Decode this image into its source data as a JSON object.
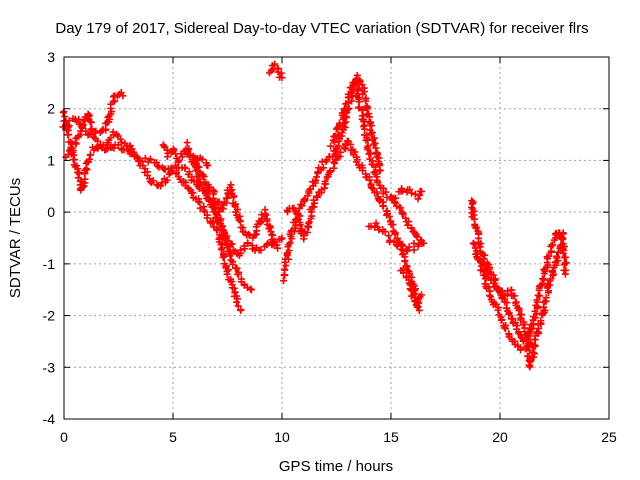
{
  "chart_data": {
    "type": "scatter",
    "title": "Day 179 of 2017, Sidereal Day-to-day VTEC variation (SDTVAR) for receiver flrs",
    "xlabel": "GPS time / hours",
    "ylabel": "SDTVAR / TECUs",
    "xlim": [
      0,
      25
    ],
    "ylim": [
      -4,
      3
    ],
    "xticks": [
      "0",
      "5",
      "10",
      "15",
      "20",
      "25"
    ],
    "yticks": [
      "3",
      "2",
      "1",
      "0",
      "-1",
      "-2",
      "-3",
      "-4"
    ],
    "grid": true,
    "marker": "plus",
    "series": [
      {
        "name": "SDTVAR",
        "color": "#ff0000",
        "segments": [
          [
            [
              0.0,
              1.95
            ],
            [
              0.1,
              1.7
            ],
            [
              0.2,
              1.5
            ],
            [
              0.3,
              1.3
            ],
            [
              0.5,
              1.0
            ],
            [
              0.7,
              0.7
            ],
            [
              0.8,
              0.4
            ],
            [
              0.9,
              0.6
            ],
            [
              1.0,
              0.8
            ],
            [
              1.2,
              1.1
            ],
            [
              1.5,
              1.3
            ],
            [
              1.8,
              1.2
            ],
            [
              2.0,
              1.3
            ],
            [
              2.3,
              1.5
            ],
            [
              2.6,
              1.4
            ],
            [
              3.0,
              1.3
            ],
            [
              3.3,
              1.1
            ],
            [
              3.6,
              0.9
            ],
            [
              4.0,
              0.6
            ],
            [
              4.3,
              0.5
            ],
            [
              4.6,
              0.6
            ],
            [
              5.0,
              0.8
            ],
            [
              5.3,
              0.7
            ],
            [
              5.6,
              0.5
            ],
            [
              6.0,
              0.3
            ],
            [
              6.3,
              0.1
            ],
            [
              6.6,
              -0.1
            ],
            [
              7.0,
              -0.3
            ],
            [
              7.2,
              -0.6
            ],
            [
              7.4,
              -1.0
            ],
            [
              7.6,
              -1.3
            ],
            [
              7.8,
              -1.5
            ],
            [
              8.0,
              -1.8
            ],
            [
              8.1,
              -1.9
            ]
          ],
          [
            [
              0.0,
              1.6
            ],
            [
              0.3,
              1.75
            ],
            [
              0.6,
              1.8
            ],
            [
              0.9,
              1.6
            ],
            [
              1.2,
              1.5
            ],
            [
              1.5,
              1.4
            ],
            [
              1.8,
              1.3
            ],
            [
              2.0,
              1.2
            ],
            [
              2.4,
              1.3
            ],
            [
              2.8,
              1.2
            ],
            [
              3.2,
              1.1
            ],
            [
              3.6,
              1.0
            ],
            [
              4.0,
              1.0
            ],
            [
              4.4,
              0.9
            ],
            [
              4.8,
              0.8
            ],
            [
              5.2,
              0.9
            ],
            [
              5.6,
              0.8
            ],
            [
              6.0,
              0.6
            ],
            [
              6.4,
              0.4
            ],
            [
              6.8,
              0.2
            ],
            [
              7.0,
              0.0
            ],
            [
              7.2,
              -0.2
            ],
            [
              7.4,
              -0.5
            ],
            [
              7.6,
              -0.8
            ],
            [
              7.8,
              -1.0
            ],
            [
              8.0,
              -1.2
            ],
            [
              8.3,
              -1.4
            ],
            [
              8.6,
              -1.5
            ]
          ],
          [
            [
              0.1,
              1.1
            ],
            [
              0.3,
              1.2
            ],
            [
              0.6,
              1.4
            ],
            [
              0.9,
              1.7
            ],
            [
              1.1,
              1.9
            ],
            [
              1.3,
              1.6
            ],
            [
              1.6,
              1.5
            ],
            [
              1.9,
              1.6
            ],
            [
              2.1,
              1.9
            ],
            [
              2.3,
              2.2
            ],
            [
              2.5,
              2.3
            ],
            [
              2.7,
              2.25
            ]
          ],
          [
            [
              4.5,
              1.3
            ],
            [
              4.8,
              1.1
            ],
            [
              5.0,
              1.2
            ],
            [
              5.3,
              1.0
            ],
            [
              5.6,
              1.2
            ],
            [
              5.8,
              1.05
            ],
            [
              6.0,
              0.9
            ],
            [
              6.2,
              0.7
            ],
            [
              6.4,
              0.5
            ],
            [
              6.6,
              0.3
            ],
            [
              6.8,
              0.1
            ],
            [
              7.0,
              -0.1
            ],
            [
              7.2,
              -0.3
            ],
            [
              7.4,
              -0.5
            ],
            [
              7.6,
              -0.6
            ],
            [
              7.8,
              -0.7
            ],
            [
              8.0,
              -0.8
            ],
            [
              8.2,
              -0.7
            ],
            [
              8.5,
              -0.6
            ],
            [
              8.8,
              -0.7
            ],
            [
              9.1,
              -0.75
            ],
            [
              9.4,
              -0.6
            ],
            [
              9.7,
              -0.55
            ],
            [
              10.0,
              -0.5
            ]
          ],
          [
            [
              5.6,
              1.3
            ],
            [
              5.9,
              1.1
            ],
            [
              6.2,
              0.8
            ],
            [
              6.5,
              0.6
            ],
            [
              6.8,
              0.4
            ],
            [
              7.0,
              0.2
            ],
            [
              7.2,
              0.05
            ],
            [
              7.4,
              0.2
            ],
            [
              7.6,
              0.5
            ],
            [
              7.8,
              0.2
            ],
            [
              8.0,
              -0.1
            ],
            [
              8.2,
              -0.3
            ],
            [
              8.4,
              -0.45
            ],
            [
              8.6,
              -0.5
            ],
            [
              8.8,
              -0.4
            ],
            [
              9.0,
              -0.2
            ],
            [
              9.2,
              0.0
            ],
            [
              9.4,
              -0.3
            ],
            [
              9.6,
              -0.6
            ],
            [
              9.8,
              -0.7
            ]
          ],
          [
            [
              6.0,
              1.0
            ],
            [
              6.2,
              1.05
            ],
            [
              6.4,
              1.0
            ],
            [
              6.6,
              0.9
            ]
          ],
          [
            [
              9.4,
              2.7
            ],
            [
              9.6,
              2.85
            ],
            [
              9.8,
              2.8
            ],
            [
              10.0,
              2.6
            ]
          ],
          [
            [
              10.1,
              -1.3
            ],
            [
              10.2,
              -1.0
            ],
            [
              10.4,
              -0.5
            ],
            [
              10.6,
              -0.2
            ],
            [
              10.8,
              0.0
            ],
            [
              11.0,
              0.2
            ],
            [
              11.2,
              0.35
            ],
            [
              11.4,
              0.5
            ],
            [
              11.6,
              0.7
            ],
            [
              11.8,
              0.85
            ],
            [
              12.0,
              1.0
            ],
            [
              12.2,
              1.05
            ],
            [
              12.4,
              1.1
            ],
            [
              12.6,
              1.3
            ],
            [
              12.8,
              1.6
            ],
            [
              13.0,
              1.9
            ],
            [
              13.2,
              2.3
            ],
            [
              13.4,
              2.5
            ],
            [
              13.5,
              2.2
            ],
            [
              13.7,
              1.8
            ],
            [
              13.9,
              1.4
            ],
            [
              14.1,
              1.0
            ],
            [
              14.3,
              0.7
            ],
            [
              14.5,
              0.45
            ],
            [
              14.8,
              0.35
            ],
            [
              15.1,
              0.2
            ],
            [
              15.4,
              0.05
            ],
            [
              15.7,
              -0.15
            ],
            [
              16.0,
              -0.35
            ],
            [
              16.3,
              -0.55
            ],
            [
              16.5,
              -0.6
            ]
          ],
          [
            [
              10.2,
              0.0
            ],
            [
              10.5,
              0.1
            ],
            [
              10.8,
              -0.2
            ],
            [
              11.0,
              -0.5
            ],
            [
              11.2,
              -0.3
            ],
            [
              11.4,
              0.1
            ],
            [
              11.6,
              0.3
            ],
            [
              11.9,
              0.5
            ],
            [
              12.2,
              0.8
            ],
            [
              12.5,
              1.0
            ],
            [
              12.8,
              1.2
            ],
            [
              13.0,
              1.4
            ],
            [
              13.2,
              1.2
            ],
            [
              13.4,
              1.05
            ],
            [
              13.6,
              0.9
            ],
            [
              13.8,
              0.75
            ],
            [
              14.0,
              0.6
            ],
            [
              14.2,
              0.45
            ],
            [
              14.4,
              0.3
            ],
            [
              14.6,
              0.15
            ],
            [
              14.8,
              0.0
            ],
            [
              15.0,
              -0.2
            ],
            [
              15.2,
              -0.45
            ],
            [
              15.4,
              -0.6
            ],
            [
              15.6,
              -0.85
            ],
            [
              15.8,
              -1.1
            ],
            [
              16.0,
              -1.4
            ],
            [
              16.2,
              -1.7
            ],
            [
              16.3,
              -1.9
            ]
          ],
          [
            [
              12.3,
              1.3
            ],
            [
              12.6,
              1.6
            ],
            [
              12.9,
              2.0
            ],
            [
              13.1,
              2.3
            ],
            [
              13.3,
              2.5
            ],
            [
              13.5,
              2.6
            ],
            [
              13.7,
              2.4
            ],
            [
              13.9,
              2.0
            ],
            [
              14.1,
              1.6
            ],
            [
              14.3,
              1.2
            ],
            [
              14.5,
              0.8
            ]
          ],
          [
            [
              14.0,
              -0.3
            ],
            [
              14.3,
              -0.25
            ],
            [
              14.6,
              -0.35
            ],
            [
              14.9,
              -0.5
            ],
            [
              15.2,
              -0.6
            ],
            [
              15.5,
              -0.65
            ],
            [
              15.8,
              -0.75
            ],
            [
              16.1,
              -0.65
            ],
            [
              16.4,
              -0.55
            ]
          ],
          [
            [
              15.0,
              0.2
            ],
            [
              15.3,
              0.35
            ],
            [
              15.6,
              0.45
            ],
            [
              15.9,
              0.4
            ],
            [
              16.2,
              0.3
            ],
            [
              16.4,
              0.4
            ]
          ],
          [
            [
              15.5,
              -1.1
            ],
            [
              15.8,
              -1.3
            ],
            [
              16.0,
              -1.6
            ],
            [
              16.2,
              -1.8
            ],
            [
              16.4,
              -1.6
            ]
          ],
          [
            [
              18.7,
              0.25
            ],
            [
              18.8,
              -0.1
            ],
            [
              19.0,
              -0.5
            ],
            [
              19.2,
              -0.8
            ],
            [
              19.4,
              -1.0
            ],
            [
              19.6,
              -1.15
            ],
            [
              19.8,
              -1.35
            ],
            [
              20.0,
              -1.55
            ],
            [
              20.2,
              -1.7
            ],
            [
              20.4,
              -1.9
            ],
            [
              20.6,
              -2.1
            ],
            [
              20.8,
              -2.3
            ],
            [
              21.0,
              -2.45
            ],
            [
              21.2,
              -2.55
            ],
            [
              21.3,
              -2.7
            ],
            [
              21.4,
              -3.0
            ],
            [
              21.5,
              -2.8
            ],
            [
              21.6,
              -2.5
            ],
            [
              21.8,
              -2.2
            ],
            [
              22.0,
              -1.9
            ],
            [
              22.2,
              -1.5
            ],
            [
              22.4,
              -1.2
            ],
            [
              22.6,
              -0.9
            ],
            [
              22.8,
              -0.6
            ],
            [
              22.9,
              -0.4
            ]
          ],
          [
            [
              18.8,
              -0.6
            ],
            [
              19.1,
              -1.0
            ],
            [
              19.4,
              -1.4
            ],
            [
              19.7,
              -1.7
            ],
            [
              20.0,
              -2.0
            ],
            [
              20.3,
              -2.3
            ],
            [
              20.6,
              -2.5
            ],
            [
              20.9,
              -2.65
            ],
            [
              21.2,
              -2.6
            ],
            [
              21.4,
              -2.3
            ],
            [
              21.6,
              -2.0
            ],
            [
              21.8,
              -1.6
            ],
            [
              22.0,
              -1.25
            ],
            [
              22.2,
              -0.9
            ],
            [
              22.4,
              -0.6
            ],
            [
              22.7,
              -0.35
            ],
            [
              22.9,
              -0.5
            ],
            [
              23.0,
              -1.2
            ]
          ],
          [
            [
              19.0,
              -0.9
            ],
            [
              19.3,
              -1.1
            ],
            [
              19.6,
              -1.3
            ],
            [
              19.9,
              -1.5
            ],
            [
              20.2,
              -1.6
            ],
            [
              20.5,
              -1.5
            ],
            [
              20.7,
              -1.7
            ],
            [
              20.9,
              -1.9
            ],
            [
              21.1,
              -2.2
            ],
            [
              21.3,
              -2.5
            ],
            [
              21.5,
              -2.6
            ]
          ]
        ]
      }
    ]
  }
}
